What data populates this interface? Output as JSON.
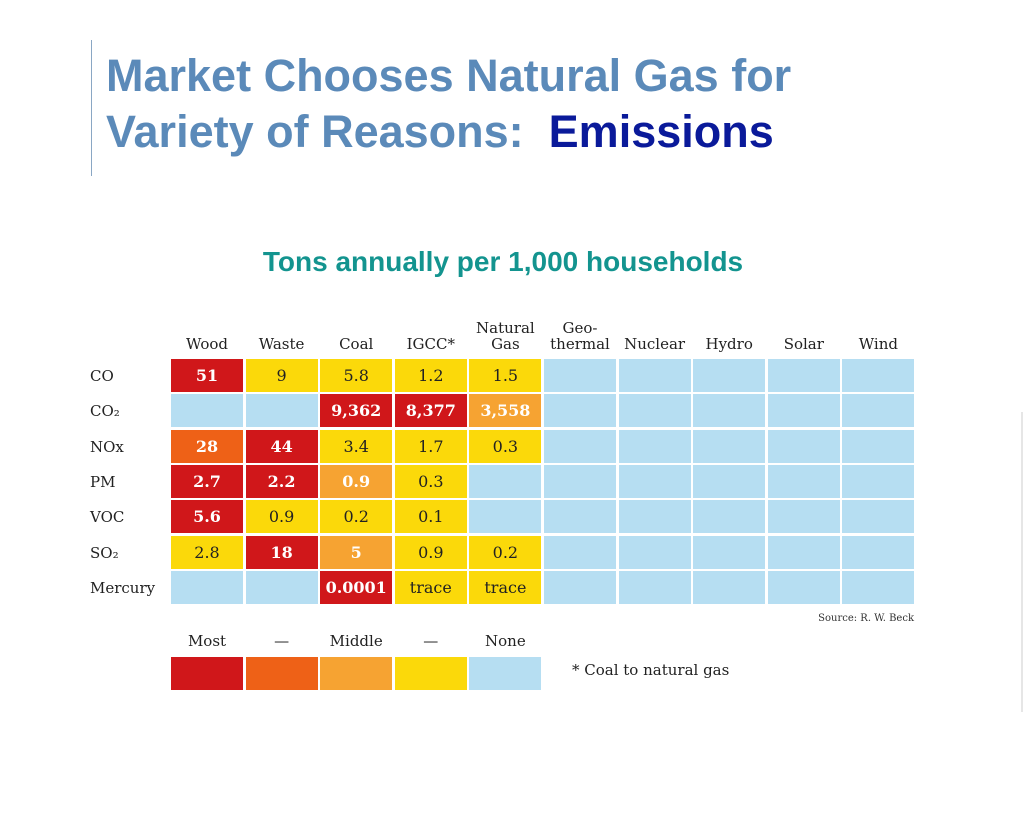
{
  "title": {
    "line1": "Market Chooses Natural Gas for",
    "line2": "Variety of Reasons:",
    "emphasis": "Emissions"
  },
  "subtitle": "Tons annually per 1,000 households",
  "table": {
    "headers": [
      [
        "Wood"
      ],
      [
        "Waste"
      ],
      [
        "Coal"
      ],
      [
        "IGCC*"
      ],
      [
        "Natural",
        "Gas"
      ],
      [
        "Geo-",
        "thermal"
      ],
      [
        "Nuclear"
      ],
      [
        "Hydro"
      ],
      [
        "Solar"
      ],
      [
        "Wind"
      ]
    ],
    "rows": [
      {
        "label": "CO",
        "cells": [
          {
            "v": "51",
            "c": "most"
          },
          {
            "v": "9",
            "c": "low"
          },
          {
            "v": "5.8",
            "c": "low"
          },
          {
            "v": "1.2",
            "c": "low"
          },
          {
            "v": "1.5",
            "c": "low"
          },
          {
            "v": "",
            "c": "none"
          },
          {
            "v": "",
            "c": "none"
          },
          {
            "v": "",
            "c": "none"
          },
          {
            "v": "",
            "c": "none"
          },
          {
            "v": "",
            "c": "none"
          }
        ]
      },
      {
        "label": "CO₂",
        "cells": [
          {
            "v": "",
            "c": "none"
          },
          {
            "v": "",
            "c": "none"
          },
          {
            "v": "9,362",
            "c": "most"
          },
          {
            "v": "8,377",
            "c": "most"
          },
          {
            "v": "3,558",
            "c": "middle"
          },
          {
            "v": "",
            "c": "none"
          },
          {
            "v": "",
            "c": "none"
          },
          {
            "v": "",
            "c": "none"
          },
          {
            "v": "",
            "c": "none"
          },
          {
            "v": "",
            "c": "none"
          }
        ]
      },
      {
        "label": "NOx",
        "cells": [
          {
            "v": "28",
            "c": "high"
          },
          {
            "v": "44",
            "c": "most"
          },
          {
            "v": "3.4",
            "c": "low"
          },
          {
            "v": "1.7",
            "c": "low"
          },
          {
            "v": "0.3",
            "c": "low"
          },
          {
            "v": "",
            "c": "none"
          },
          {
            "v": "",
            "c": "none"
          },
          {
            "v": "",
            "c": "none"
          },
          {
            "v": "",
            "c": "none"
          },
          {
            "v": "",
            "c": "none"
          }
        ]
      },
      {
        "label": "PM",
        "cells": [
          {
            "v": "2.7",
            "c": "most"
          },
          {
            "v": "2.2",
            "c": "most"
          },
          {
            "v": "0.9",
            "c": "middle"
          },
          {
            "v": "0.3",
            "c": "low"
          },
          {
            "v": "",
            "c": "none"
          },
          {
            "v": "",
            "c": "none"
          },
          {
            "v": "",
            "c": "none"
          },
          {
            "v": "",
            "c": "none"
          },
          {
            "v": "",
            "c": "none"
          },
          {
            "v": "",
            "c": "none"
          }
        ]
      },
      {
        "label": "VOC",
        "cells": [
          {
            "v": "5.6",
            "c": "most"
          },
          {
            "v": "0.9",
            "c": "low"
          },
          {
            "v": "0.2",
            "c": "low"
          },
          {
            "v": "0.1",
            "c": "low"
          },
          {
            "v": "",
            "c": "none"
          },
          {
            "v": "",
            "c": "none"
          },
          {
            "v": "",
            "c": "none"
          },
          {
            "v": "",
            "c": "none"
          },
          {
            "v": "",
            "c": "none"
          },
          {
            "v": "",
            "c": "none"
          }
        ]
      },
      {
        "label": "SO₂",
        "cells": [
          {
            "v": "2.8",
            "c": "low"
          },
          {
            "v": "18",
            "c": "most"
          },
          {
            "v": "5",
            "c": "middle"
          },
          {
            "v": "0.9",
            "c": "low"
          },
          {
            "v": "0.2",
            "c": "low"
          },
          {
            "v": "",
            "c": "none"
          },
          {
            "v": "",
            "c": "none"
          },
          {
            "v": "",
            "c": "none"
          },
          {
            "v": "",
            "c": "none"
          },
          {
            "v": "",
            "c": "none"
          }
        ]
      },
      {
        "label": "Mercury",
        "cells": [
          {
            "v": "",
            "c": "none"
          },
          {
            "v": "",
            "c": "none"
          },
          {
            "v": "0.0001",
            "c": "most"
          },
          {
            "v": "trace",
            "c": "low"
          },
          {
            "v": "trace",
            "c": "low"
          },
          {
            "v": "",
            "c": "none"
          },
          {
            "v": "",
            "c": "none"
          },
          {
            "v": "",
            "c": "none"
          },
          {
            "v": "",
            "c": "none"
          },
          {
            "v": "",
            "c": "none"
          }
        ]
      }
    ]
  },
  "source": "Source: R. W. Beck",
  "legend": [
    {
      "label": "Most",
      "c": "most",
      "color": "#d0171a"
    },
    {
      "label": "—",
      "c": "high",
      "color": "#ee6117"
    },
    {
      "label": "Middle",
      "c": "middle",
      "color": "#f6a332"
    },
    {
      "label": "—",
      "c": "low",
      "color": "#fbd90a"
    },
    {
      "label": "None",
      "c": "none",
      "color": "#b6def2"
    }
  ],
  "footnote": "* Coal to natural gas",
  "colors": {
    "title": "#5b8ab9",
    "emphasis": "#0a1a9a",
    "subtitle": "#13948f"
  }
}
